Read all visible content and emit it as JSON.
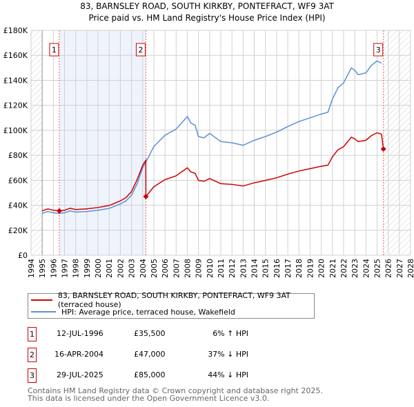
{
  "chart_data": {
    "type": "line",
    "title": "83, BARNSLEY ROAD, SOUTH KIRKBY, PONTEFRACT, WF9 3AT",
    "subtitle": "Price paid vs. HM Land Registry's House Price Index (HPI)",
    "xlim": [
      1994,
      2028
    ],
    "ylim": [
      0,
      180
    ],
    "y_ticks": [
      {
        "v": 0,
        "label": "£0"
      },
      {
        "v": 20,
        "label": "£20K"
      },
      {
        "v": 40,
        "label": "£40K"
      },
      {
        "v": 60,
        "label": "£60K"
      },
      {
        "v": 80,
        "label": "£80K"
      },
      {
        "v": 100,
        "label": "£100K"
      },
      {
        "v": 120,
        "label": "£120K"
      },
      {
        "v": 140,
        "label": "£140K"
      },
      {
        "v": 160,
        "label": "£160K"
      },
      {
        "v": 180,
        "label": "£180K"
      }
    ],
    "x_ticks": [
      "1994",
      "1995",
      "1996",
      "1997",
      "1998",
      "1999",
      "2000",
      "2001",
      "2002",
      "2003",
      "2004",
      "2005",
      "2006",
      "2007",
      "2008",
      "2009",
      "2010",
      "2011",
      "2012",
      "2013",
      "2014",
      "2015",
      "2016",
      "2017",
      "2018",
      "2019",
      "2020",
      "2021",
      "2022",
      "2023",
      "2024",
      "2025",
      "2026",
      "2027",
      "2028"
    ],
    "grid": true,
    "series": [
      {
        "name": "83, BARNSLEY ROAD, SOUTH KIRKBY, PONTEFRACT, WF9 3AT (terraced house)",
        "color": "#cc0000",
        "x": [
          1995,
          1995.5,
          1996,
          1996.53,
          1997,
          1997.5,
          1998,
          1999,
          2000,
          2001,
          2002,
          2002.5,
          2003,
          2003.5,
          2004,
          2004.28,
          2004.29,
          2005,
          2006,
          2007,
          2007.5,
          2008,
          2008.3,
          2008.7,
          2009,
          2009.5,
          2010,
          2011,
          2012,
          2013,
          2014,
          2015,
          2016,
          2017,
          2018,
          2019,
          2020,
          2020.6,
          2021,
          2021.5,
          2022,
          2022.7,
          2023,
          2023.3,
          2024,
          2024.5,
          2025,
          2025.4,
          2025.57
        ],
        "y": [
          35.5,
          37.1,
          36,
          35.5,
          36,
          37.6,
          36.6,
          37.1,
          38.2,
          39.8,
          43.5,
          46.1,
          50.9,
          60.4,
          72,
          76,
          47,
          54.8,
          60.5,
          63.6,
          66.8,
          70,
          66.8,
          65.5,
          59.9,
          59.2,
          61.4,
          57.3,
          56.7,
          55.4,
          58,
          59.9,
          62,
          64.9,
          67.4,
          69.3,
          71.2,
          72.1,
          78.8,
          84.4,
          86.9,
          94.5,
          93.2,
          91,
          92,
          95.8,
          98,
          96.8,
          85
        ]
      },
      {
        "name": "HPI: Average price, terraced house, Wakefield",
        "color": "#5b8fd4",
        "x": [
          1995,
          1995.5,
          1996,
          1996.53,
          1997,
          1997.5,
          1998,
          1999,
          2000,
          2001,
          2002,
          2002.5,
          2003,
          2003.5,
          2004,
          2004.29,
          2005,
          2006,
          2007,
          2007.5,
          2008,
          2008.3,
          2008.7,
          2009,
          2009.5,
          2010,
          2011,
          2012,
          2013,
          2014,
          2015,
          2016,
          2017,
          2018,
          2019,
          2020,
          2020.6,
          2021,
          2021.5,
          2022,
          2022.7,
          2023,
          2023.3,
          2024,
          2024.5,
          2025,
          2025.4
        ],
        "y": [
          33.5,
          35,
          34,
          33.5,
          34,
          35.5,
          34.5,
          35,
          36,
          37.5,
          41,
          43.5,
          48,
          57,
          70,
          74.5,
          87,
          96,
          101,
          106,
          111,
          106,
          104,
          95,
          94,
          97.5,
          91,
          90,
          88,
          92,
          95,
          98.5,
          103,
          107,
          110,
          113,
          114.5,
          125,
          134,
          138,
          150,
          148,
          144.5,
          146,
          152,
          155.5,
          153.7
        ]
      }
    ],
    "sales": [
      {
        "label": "1",
        "x": 1996.53,
        "y": 35.5,
        "date": "12-JUL-1996",
        "price": "£35,500",
        "hpi": "6% ↑ HPI"
      },
      {
        "label": "2",
        "x": 2004.29,
        "y": 47,
        "date": "16-APR-2004",
        "price": "£47,000",
        "hpi": "37% ↓ HPI"
      },
      {
        "label": "3",
        "x": 2025.57,
        "y": 85,
        "date": "29-JUL-2025",
        "price": "£85,000",
        "hpi": "44% ↓ HPI"
      }
    ],
    "shaded_range": [
      1996.53,
      2004.29
    ],
    "hatched_ranges": [
      [
        1994,
        1995
      ],
      [
        2025.6,
        2028
      ]
    ],
    "legend_position": "bottom"
  },
  "footer": [
    "Contains HM Land Registry data © Crown copyright and database right 2025.",
    "This data is licensed under the Open Government Licence v3.0."
  ]
}
